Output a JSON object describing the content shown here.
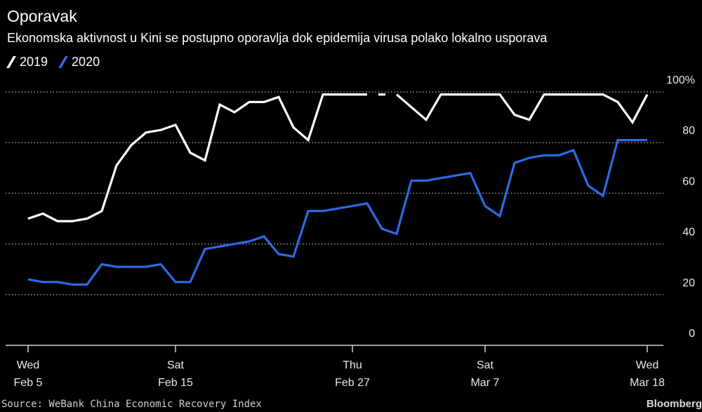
{
  "title": "Oporavak",
  "subtitle": "Ekonomska aktivnost u Kini se postupno oporavlja dok epidemija virusa polako lokalno usporava",
  "source": "Source: WeBank China Economic Recovery Index",
  "brand": "Bloomberg",
  "colors": {
    "background": "#000000",
    "series_2019": "#ffffff",
    "series_2020": "#2d6be4",
    "grid": "#9a9a9a"
  },
  "chart_data": {
    "type": "line",
    "title": "Oporavak",
    "subtitle": "Ekonomska aktivnost u Kini se postupno oporavlja dok epidemija virusa polako lokalno usporava",
    "xlabel": "",
    "ylabel": "",
    "ylim": [
      0,
      100
    ],
    "y_ticks": [
      "0",
      "20",
      "40",
      "60",
      "80",
      "100%"
    ],
    "y_tick_values": [
      0,
      20,
      40,
      60,
      80,
      100
    ],
    "y_axis_side": "right",
    "grid": "horizontal-dotted",
    "legend_position": "top-left",
    "x_ticks": [
      {
        "day": 0,
        "line1": "Wed",
        "line2": "Feb 5"
      },
      {
        "day": 10,
        "line1": "Sat",
        "line2": "Feb 15"
      },
      {
        "day": 22,
        "line1": "Thu",
        "line2": "Feb 27"
      },
      {
        "day": 31,
        "line1": "Sat",
        "line2": "Mar 7"
      },
      {
        "day": 42,
        "line1": "Wed",
        "line2": "Mar 18"
      }
    ],
    "x_range": [
      0,
      44
    ],
    "series": [
      {
        "name": "2019",
        "color": "#ffffff",
        "x": [
          0,
          1,
          2,
          3,
          4,
          5,
          6,
          7,
          8,
          9,
          10,
          11,
          12,
          13,
          14,
          15,
          16,
          17,
          18,
          19,
          20,
          21,
          22,
          23,
          24,
          25,
          26,
          27,
          28,
          29,
          30,
          31,
          32,
          33,
          34,
          35,
          36,
          37,
          38,
          39,
          40,
          41,
          42
        ],
        "values": [
          50,
          52,
          49,
          49,
          50,
          53,
          71,
          79,
          84,
          85,
          87,
          76,
          73,
          95,
          92,
          96,
          96,
          98,
          86,
          81,
          99,
          99,
          99,
          99,
          null,
          99,
          94,
          89,
          99,
          99,
          99,
          99,
          99,
          91,
          89,
          99,
          99,
          99,
          99,
          99,
          96,
          88,
          99
        ]
      },
      {
        "name": "2020",
        "color": "#2d6be4",
        "x": [
          0,
          1,
          2,
          3,
          4,
          5,
          6,
          7,
          8,
          9,
          10,
          11,
          12,
          13,
          14,
          15,
          16,
          17,
          18,
          19,
          20,
          21,
          22,
          23,
          24,
          25,
          26,
          27,
          28,
          29,
          30,
          31,
          32,
          33,
          34,
          35,
          36,
          37,
          38,
          39,
          40,
          41,
          42
        ],
        "values": [
          26,
          25,
          25,
          24,
          24,
          32,
          31,
          31,
          31,
          32,
          25,
          25,
          38,
          39,
          40,
          41,
          43,
          36,
          35,
          53,
          53,
          54,
          55,
          56,
          46,
          44,
          65,
          65,
          66,
          67,
          68,
          55,
          51,
          72,
          74,
          75,
          75,
          77,
          63,
          59,
          81,
          81,
          81
        ]
      }
    ]
  }
}
